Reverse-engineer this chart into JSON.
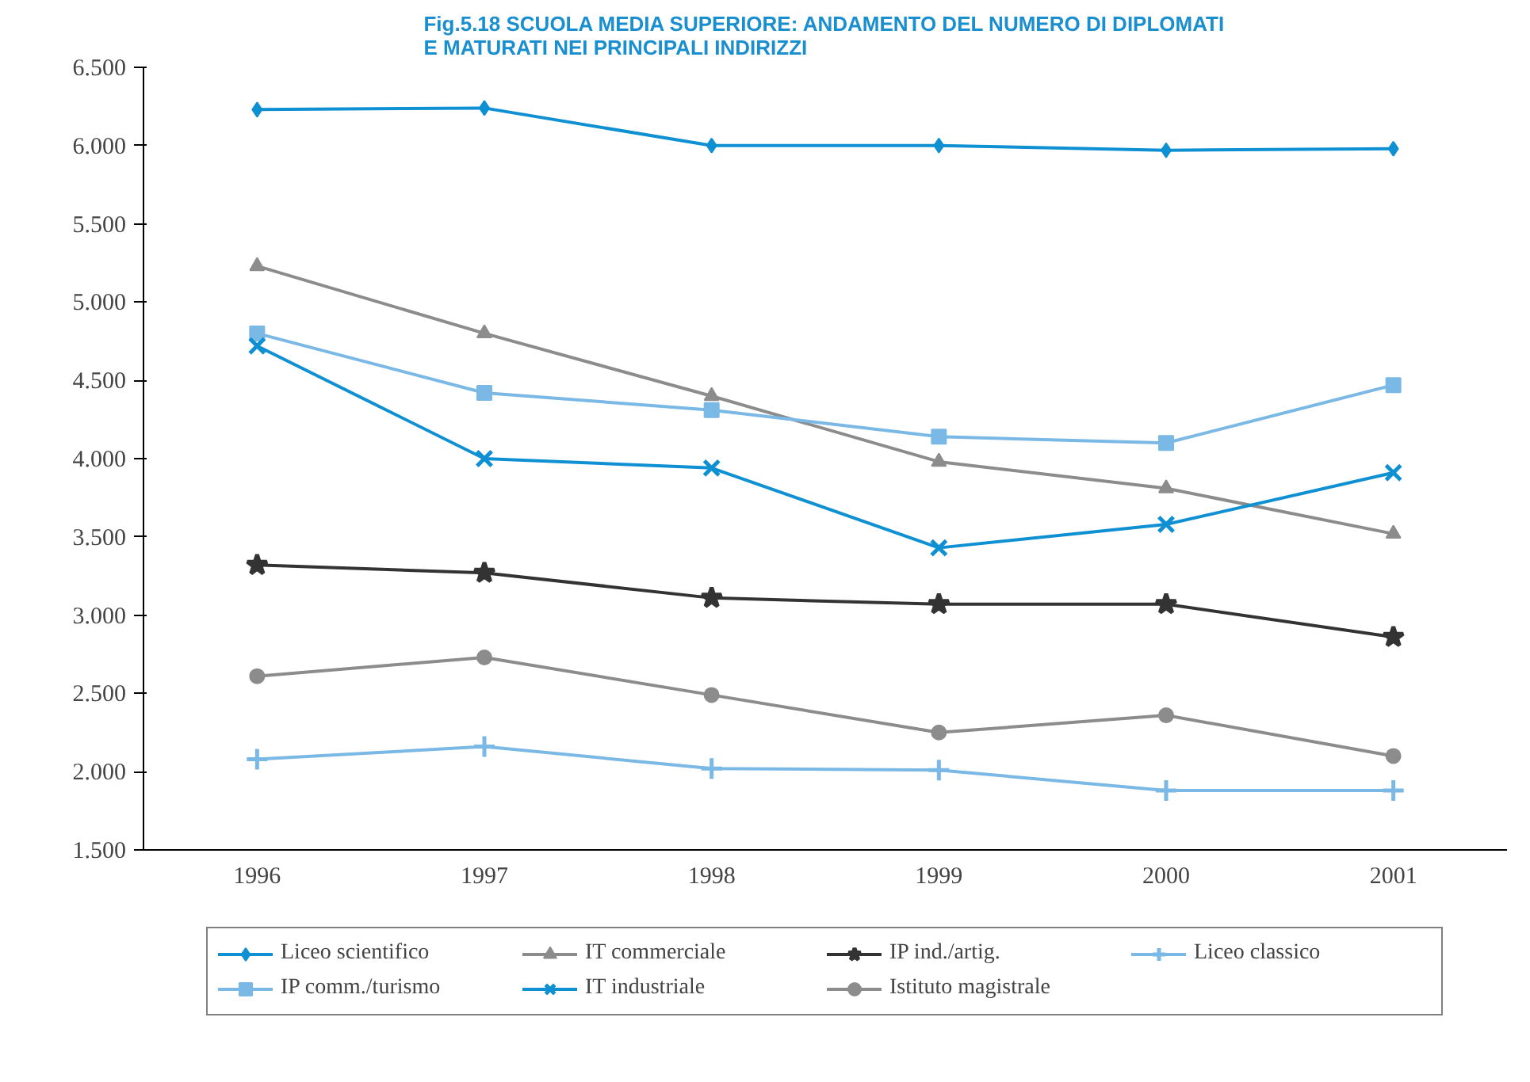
{
  "chart_data": {
    "type": "line",
    "title": "Fig.5.18 SCUOLA MEDIA SUPERIORE: ANDAMENTO DEL NUMERO DI DIPLOMATI\nE MATURATI NEI PRINCIPALI INDIRIZZI",
    "categories": [
      "1996",
      "1997",
      "1998",
      "1999",
      "2000",
      "2001"
    ],
    "ylim": [
      1500,
      6500
    ],
    "yticks": [
      {
        "value": 1500,
        "label": "1.500"
      },
      {
        "value": 2000,
        "label": "2.000"
      },
      {
        "value": 2500,
        "label": "2.500"
      },
      {
        "value": 3000,
        "label": "3.000"
      },
      {
        "value": 3500,
        "label": "3.500"
      },
      {
        "value": 4000,
        "label": "4.000"
      },
      {
        "value": 4500,
        "label": "4.500"
      },
      {
        "value": 5000,
        "label": "5.000"
      },
      {
        "value": 5500,
        "label": "5.500"
      },
      {
        "value": 6000,
        "label": "6.000"
      },
      {
        "value": 6500,
        "label": "6.500"
      }
    ],
    "grid": false,
    "legend": "bottom",
    "series": [
      {
        "name": "Liceo scientifico",
        "color": "#0e90d2",
        "marker": "diamond",
        "values": [
          6230,
          6240,
          6000,
          6000,
          5970,
          5980
        ]
      },
      {
        "name": "IT commerciale",
        "color": "#8c8c8c",
        "marker": "triangle",
        "values": [
          5230,
          4800,
          4400,
          3980,
          3810,
          3520
        ]
      },
      {
        "name": "IP ind./artig.",
        "color": "#333333",
        "marker": "star",
        "values": [
          3320,
          3270,
          3110,
          3070,
          3070,
          2860
        ]
      },
      {
        "name": "Liceo classico",
        "color": "#7ab8e6",
        "marker": "cross",
        "values": [
          2080,
          2160,
          2020,
          2010,
          1880,
          1880
        ]
      },
      {
        "name": "IP comm./turismo",
        "color": "#7ab8e6",
        "marker": "square",
        "values": [
          4800,
          4420,
          4310,
          4140,
          4100,
          4470
        ]
      },
      {
        "name": "IT industriale",
        "color": "#0e90d2",
        "marker": "x",
        "values": [
          4720,
          4000,
          3940,
          3430,
          3580,
          3910
        ]
      },
      {
        "name": "Istituto magistrale",
        "color": "#8c8c8c",
        "marker": "circle",
        "values": [
          2610,
          2730,
          2490,
          2250,
          2360,
          2100
        ]
      }
    ]
  }
}
